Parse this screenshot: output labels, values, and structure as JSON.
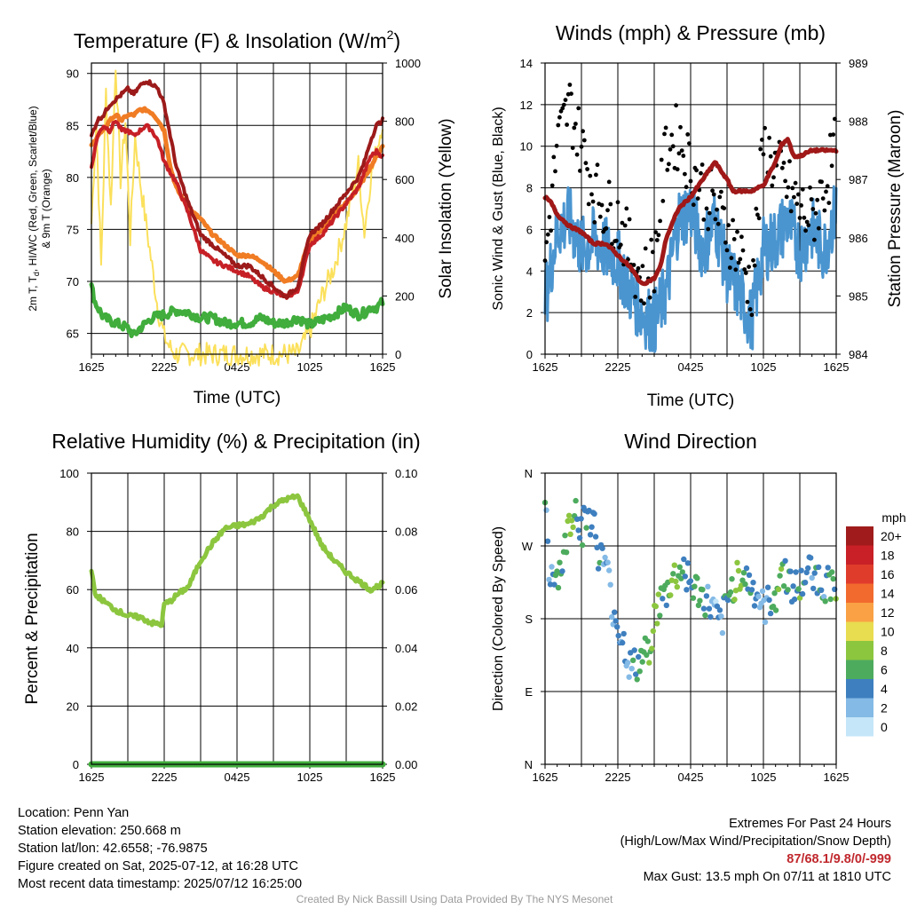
{
  "colors": {
    "red": "#c62026",
    "maroon": "#a01818",
    "darkred": "#9c1a1a",
    "orange": "#f07c24",
    "yellow": "#fbe05c",
    "green": "#40ad3c",
    "lightgreen": "#8cc63f",
    "blue": "#4a95d0",
    "black": "#000000"
  },
  "chart_data": [
    {
      "type": "line",
      "title_main": "Temperature (F) & Insolation (W/m",
      "title_sup": "2",
      "title_end": ")",
      "xlabel": "Time (UTC)",
      "ylabel_line1_a": "2m T, T",
      "ylabel_line1_sub": "d",
      "ylabel_line1_b": ", HI/WC (Red, Green, Scarlet/Blue)",
      "ylabel_line2": "& 9m T (Orange)",
      "ylabel_right": "Solar Insolation (Yellow)",
      "x_ticks": [
        "1625",
        "2225",
        "0425",
        "1025",
        "1625"
      ],
      "ylim": [
        63,
        91
      ],
      "y_ticks": [
        65,
        70,
        75,
        80,
        85,
        90
      ],
      "y2lim": [
        0,
        1000
      ],
      "y2_ticks": [
        0,
        200,
        400,
        600,
        800,
        1000
      ],
      "grid": true,
      "series": [
        {
          "color_key": "darkred",
          "hours": [
            0,
            0.5,
            1,
            1.5,
            2,
            2.5,
            3,
            3.5,
            4,
            4.5,
            5,
            5.5,
            6,
            7,
            8,
            9,
            10,
            11,
            12,
            13,
            14,
            15,
            16,
            17,
            18,
            19,
            20,
            21,
            22,
            22.5,
            23,
            23.5,
            24
          ],
          "values": [
            84,
            85.5,
            86,
            87,
            87.5,
            88,
            88.5,
            88,
            88.8,
            89.3,
            89,
            88.5,
            87,
            81,
            77.5,
            74.5,
            73.5,
            72.5,
            71.5,
            71.5,
            70.5,
            69.5,
            68.5,
            69.5,
            74.5,
            75.5,
            77,
            78.5,
            80,
            81.5,
            83.5,
            85,
            85.5
          ]
        },
        {
          "color_key": "orange",
          "hours": [
            0,
            0.5,
            1,
            1.5,
            2,
            2.5,
            3,
            3.5,
            4,
            4.5,
            5,
            5.5,
            6,
            6.5,
            7,
            8,
            9,
            10,
            11,
            12,
            13,
            14,
            15,
            16,
            17,
            18,
            19,
            20,
            21,
            22,
            22.5,
            23,
            23.5,
            24
          ],
          "values": [
            83,
            84,
            84.5,
            85.5,
            86,
            85.5,
            86,
            86,
            86.5,
            86.5,
            86.2,
            85.5,
            84.5,
            81,
            79,
            77,
            76,
            74.5,
            73.5,
            72.5,
            72.5,
            72,
            71,
            70,
            70.5,
            74,
            75,
            76.5,
            77.5,
            79,
            80,
            81,
            82,
            83
          ]
        },
        {
          "color_key": "red",
          "hours": [
            0,
            0.5,
            1,
            1.5,
            2,
            2.5,
            3,
            3.5,
            4,
            4.5,
            5,
            5.5,
            6,
            7,
            8,
            9,
            10,
            11,
            12,
            13,
            14,
            15,
            16,
            17,
            18,
            19,
            20,
            21,
            22,
            22.5,
            23,
            23.5,
            24
          ],
          "values": [
            81,
            84,
            85,
            84.5,
            85.5,
            84.5,
            84.5,
            84,
            84.5,
            85,
            84.5,
            83.5,
            81.5,
            79.5,
            76.5,
            73,
            72,
            71.5,
            71,
            70.5,
            69.5,
            69,
            68.5,
            69,
            73.5,
            74.5,
            76,
            77.5,
            79,
            80.5,
            82,
            82.5,
            82
          ]
        },
        {
          "color_key": "green",
          "hours": [
            0,
            0.3,
            1,
            2,
            3,
            3.5,
            4,
            5,
            6,
            7,
            8,
            9,
            10,
            11,
            12,
            13,
            14,
            15,
            16,
            17,
            18,
            19,
            20,
            21,
            22,
            22.5,
            23,
            23.5,
            24
          ],
          "values": [
            69.5,
            68,
            66.5,
            66,
            65.5,
            64.8,
            65.5,
            66.5,
            66.8,
            67.2,
            67,
            66.5,
            66.5,
            66,
            66,
            66,
            66.5,
            66,
            66,
            66.5,
            65.8,
            66.3,
            66.8,
            67.5,
            66.8,
            67,
            67.5,
            67.5,
            68
          ]
        },
        {
          "color_key": "yellow",
          "axis": "y2",
          "hours": [
            0,
            0.4,
            0.8,
            1.2,
            1.6,
            2,
            2.4,
            2.8,
            3.2,
            3.6,
            4,
            4.5,
            5,
            5.5,
            6,
            6.5,
            7,
            8,
            9,
            10,
            11,
            12,
            13,
            14,
            15,
            16,
            17,
            18,
            19,
            20,
            21,
            22,
            22.5,
            23,
            23.5,
            24
          ],
          "values": [
            450,
            800,
            300,
            900,
            500,
            1000,
            600,
            800,
            400,
            750,
            600,
            450,
            300,
            150,
            60,
            20,
            0,
            0,
            0,
            0,
            0,
            0,
            0,
            0,
            0,
            0,
            0,
            80,
            200,
            300,
            450,
            650,
            420,
            600,
            700,
            800
          ]
        }
      ]
    },
    {
      "type": "line",
      "title": "Winds (mph) & Pressure (mb)",
      "xlabel": "Time (UTC)",
      "ylabel": "Sonic Wind & Gust (Blue, Black)",
      "ylabel_right": "Station Pressure (Maroon)",
      "x_ticks": [
        "1625",
        "2225",
        "0425",
        "1025",
        "1625"
      ],
      "ylim": [
        0,
        14
      ],
      "y_ticks": [
        0,
        2,
        4,
        6,
        8,
        10,
        12,
        14
      ],
      "y2lim": [
        984,
        989
      ],
      "y2_ticks": [
        984,
        985,
        986,
        987,
        988,
        989
      ],
      "grid": true,
      "series": [
        {
          "color_key": "blue",
          "hours": [
            0,
            1,
            2,
            3,
            4,
            5,
            6,
            7,
            8,
            9,
            10,
            11,
            12,
            13,
            14,
            15,
            16,
            17,
            18,
            19,
            20,
            21,
            22,
            23,
            24
          ],
          "values": [
            2.5,
            6,
            6.5,
            5,
            5.5,
            5,
            4.5,
            3,
            2,
            1.5,
            3,
            6.5,
            7,
            5,
            6.5,
            4,
            3,
            1.5,
            5,
            5.5,
            6.5,
            5,
            6,
            5,
            7
          ]
        },
        {
          "color_key": "black",
          "hours": [
            0,
            1,
            2,
            3,
            4,
            5,
            6,
            7,
            8,
            9,
            10,
            11,
            12,
            13,
            14,
            15,
            16,
            17,
            18,
            19,
            20,
            21,
            22,
            23,
            24
          ],
          "values": [
            4.5,
            10,
            12,
            10,
            8,
            7,
            6.5,
            5,
            3.5,
            4.5,
            10,
            10.5,
            9,
            8,
            7,
            6,
            5,
            3,
            10,
            9,
            8,
            7,
            6.5,
            8,
            10
          ]
        },
        {
          "color_key": "maroon",
          "axis": "y2",
          "hours": [
            0,
            0.5,
            1,
            2,
            3,
            4,
            5,
            6,
            7,
            8,
            8.5,
            9,
            9.5,
            10,
            11,
            12,
            13,
            14,
            15,
            15.5,
            16,
            17,
            18,
            19,
            19.5,
            20,
            20.5,
            21,
            22,
            23,
            24
          ],
          "values": [
            986.7,
            986.6,
            986.4,
            986.2,
            986.1,
            985.9,
            985.9,
            985.7,
            985.5,
            985.2,
            985.25,
            985.3,
            985.5,
            986.0,
            986.5,
            986.7,
            987.0,
            987.3,
            987.0,
            986.8,
            986.8,
            986.8,
            986.9,
            987.3,
            987.6,
            987.7,
            987.4,
            987.4,
            987.5,
            987.5,
            987.5
          ]
        }
      ]
    },
    {
      "type": "line",
      "title": "Relative Humidity (%) & Precipitation (in)",
      "ylabel": "Percent & Precipitation",
      "x_ticks": [
        "1625",
        "2225",
        "0425",
        "1025",
        "1625"
      ],
      "ylim": [
        0,
        100
      ],
      "y_ticks": [
        0,
        20,
        40,
        60,
        80,
        100
      ],
      "y2lim": [
        0,
        0.1
      ],
      "y2_ticks": [
        "0.00",
        "0.02",
        "0.04",
        "0.06",
        "0.08",
        "0.10"
      ],
      "grid": true,
      "series": [
        {
          "color_key": "lightgreen",
          "hours": [
            0,
            0.3,
            0.6,
            1,
            2,
            3,
            4,
            5,
            5.8,
            6,
            6.5,
            7,
            8,
            9,
            10,
            11,
            12,
            13,
            14,
            15,
            16,
            17,
            18,
            19,
            20,
            21,
            22,
            23,
            24
          ],
          "values": [
            67,
            58,
            57.5,
            56,
            53,
            51,
            50.5,
            48.5,
            48,
            55,
            56,
            58,
            61,
            70,
            76,
            81,
            82,
            82.5,
            85,
            89,
            91,
            92,
            84,
            75,
            70,
            66,
            63,
            60,
            62
          ]
        },
        {
          "color_key": "green",
          "axis": "y2",
          "hours": [
            0,
            24
          ],
          "values": [
            0,
            0
          ]
        }
      ]
    },
    {
      "type": "scatter",
      "title": "Wind Direction",
      "ylabel": "Direction (Colored By Speed)",
      "x_ticks": [
        "1625",
        "2225",
        "0425",
        "1025",
        "1625"
      ],
      "y_ticks": [
        "N",
        "E",
        "S",
        "W",
        "N"
      ],
      "ylim": [
        0,
        360
      ],
      "grid": true,
      "legend_title": "mph",
      "legend_labels": [
        "20+",
        "18",
        "16",
        "14",
        "12",
        "10",
        "8",
        "6",
        "4",
        "2",
        "0"
      ],
      "legend_colors": [
        "#a01c1c",
        "#c82026",
        "#e03c2c",
        "#f26a2e",
        "#f9a144",
        "#e8dc50",
        "#8cc63f",
        "#4dab5e",
        "#3e7fbf",
        "#84bae6",
        "#c4e6f8"
      ],
      "hours": [
        0,
        0.3,
        0.6,
        1,
        1.5,
        2,
        2.5,
        3,
        3.5,
        4,
        4.5,
        5,
        5.5,
        6,
        6.5,
        7,
        7.5,
        8,
        8.5,
        9,
        9.5,
        10,
        10.5,
        11,
        11.5,
        12,
        12.5,
        13,
        13.5,
        14,
        14.5,
        15,
        15.5,
        16,
        16.5,
        17,
        17.5,
        18,
        18.5,
        19,
        19.5,
        20,
        20.5,
        21,
        21.5,
        22,
        22.5,
        23,
        23.5,
        24
      ],
      "directions": [
        330,
        230,
        240,
        235,
        250,
        300,
        320,
        290,
        310,
        300,
        255,
        250,
        200,
        170,
        150,
        120,
        120,
        130,
        140,
        180,
        200,
        210,
        230,
        235,
        245,
        220,
        215,
        205,
        200,
        185,
        170,
        200,
        220,
        240,
        230,
        220,
        210,
        190,
        200,
        210,
        240,
        230,
        220,
        215,
        235,
        240,
        230,
        220,
        225,
        225
      ],
      "speeds": [
        4,
        3,
        4,
        6,
        5,
        8,
        6,
        4,
        4,
        3,
        4,
        3,
        2,
        4,
        3,
        4,
        5,
        6,
        7,
        8,
        6,
        5,
        8,
        6,
        4,
        4,
        6,
        5,
        3,
        2,
        3,
        4,
        6,
        8,
        6,
        4,
        3,
        2,
        4,
        6,
        7,
        5,
        4,
        6,
        5,
        4,
        6,
        4,
        5,
        6
      ]
    }
  ],
  "info_left": {
    "location": "Location: Penn Yan",
    "elevation": "Station elevation: 250.668 m",
    "latlon": "Station lat/lon: 42.6558; -76.9875",
    "created": "Figure created on Sat, 2025-07-12, at 16:28 UTC",
    "recent": "Most recent data timestamp: 2025/07/12 16:25:00"
  },
  "info_right": {
    "title": "Extremes For Past 24 Hours",
    "subtitle": "(High/Low/Max Wind/Precipitation/Snow Depth)",
    "extremes": "87/68.1/9.8/0/-999",
    "gust": "Max Gust: 13.5 mph On 07/11 at 1810 UTC"
  },
  "credit": "Created By Nick Bassill Using Data Provided By The NYS Mesonet"
}
